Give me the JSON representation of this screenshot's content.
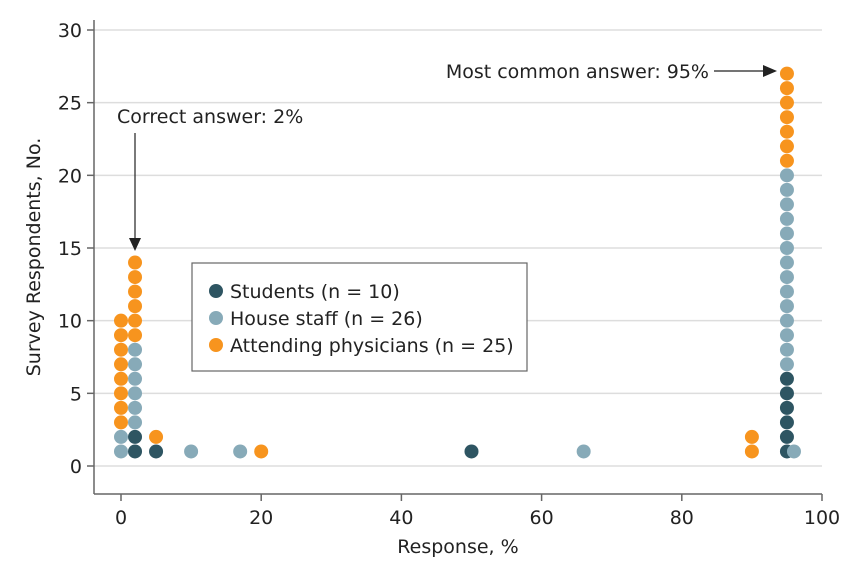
{
  "chart_data": {
    "type": "scatter",
    "title": "",
    "xlabel": "Response, %",
    "ylabel": "Survey Respondents, No.",
    "xlim": [
      0,
      100
    ],
    "ylim": [
      0,
      30
    ],
    "xticks": [
      0,
      20,
      40,
      60,
      80,
      100
    ],
    "yticks": [
      0,
      5,
      10,
      15,
      20,
      25,
      30
    ],
    "grid": "horizontal",
    "legend_position": "center-left",
    "series": [
      {
        "name": "Students (n = 10)",
        "color": "#2e5562",
        "points": [
          [
            2,
            1
          ],
          [
            2,
            2
          ],
          [
            5,
            1
          ],
          [
            50,
            1
          ],
          [
            95,
            1
          ],
          [
            95,
            2
          ],
          [
            95,
            3
          ],
          [
            95,
            4
          ],
          [
            95,
            5
          ],
          [
            95,
            6
          ]
        ]
      },
      {
        "name": "House staff (n = 26)",
        "color": "#87aab8",
        "points": [
          [
            0,
            1
          ],
          [
            0,
            2
          ],
          [
            2,
            3
          ],
          [
            2,
            4
          ],
          [
            2,
            5
          ],
          [
            2,
            6
          ],
          [
            2,
            7
          ],
          [
            2,
            8
          ],
          [
            10,
            1
          ],
          [
            17,
            1
          ],
          [
            66,
            1
          ],
          [
            96,
            1
          ],
          [
            95,
            7
          ],
          [
            95,
            8
          ],
          [
            95,
            9
          ],
          [
            95,
            10
          ],
          [
            95,
            11
          ],
          [
            95,
            12
          ],
          [
            95,
            13
          ],
          [
            95,
            14
          ],
          [
            95,
            15
          ],
          [
            95,
            16
          ],
          [
            95,
            17
          ],
          [
            95,
            18
          ],
          [
            95,
            19
          ],
          [
            95,
            20
          ]
        ]
      },
      {
        "name": "Attending physicians (n = 25)",
        "color": "#f7941e",
        "points": [
          [
            0,
            3
          ],
          [
            0,
            4
          ],
          [
            0,
            5
          ],
          [
            0,
            6
          ],
          [
            0,
            7
          ],
          [
            0,
            8
          ],
          [
            0,
            9
          ],
          [
            0,
            10
          ],
          [
            2,
            9
          ],
          [
            2,
            10
          ],
          [
            2,
            11
          ],
          [
            2,
            12
          ],
          [
            2,
            13
          ],
          [
            2,
            14
          ],
          [
            5,
            2
          ],
          [
            20,
            1
          ],
          [
            90,
            1
          ],
          [
            90,
            2
          ],
          [
            95,
            21
          ],
          [
            95,
            22
          ],
          [
            95,
            23
          ],
          [
            95,
            24
          ],
          [
            95,
            25
          ],
          [
            95,
            26
          ],
          [
            95,
            27
          ]
        ]
      }
    ],
    "annotations": [
      {
        "text": "Correct answer: 2%",
        "x": 2,
        "y": 14
      },
      {
        "text": "Most common answer: 95%",
        "x": 95,
        "y": 27
      }
    ]
  }
}
